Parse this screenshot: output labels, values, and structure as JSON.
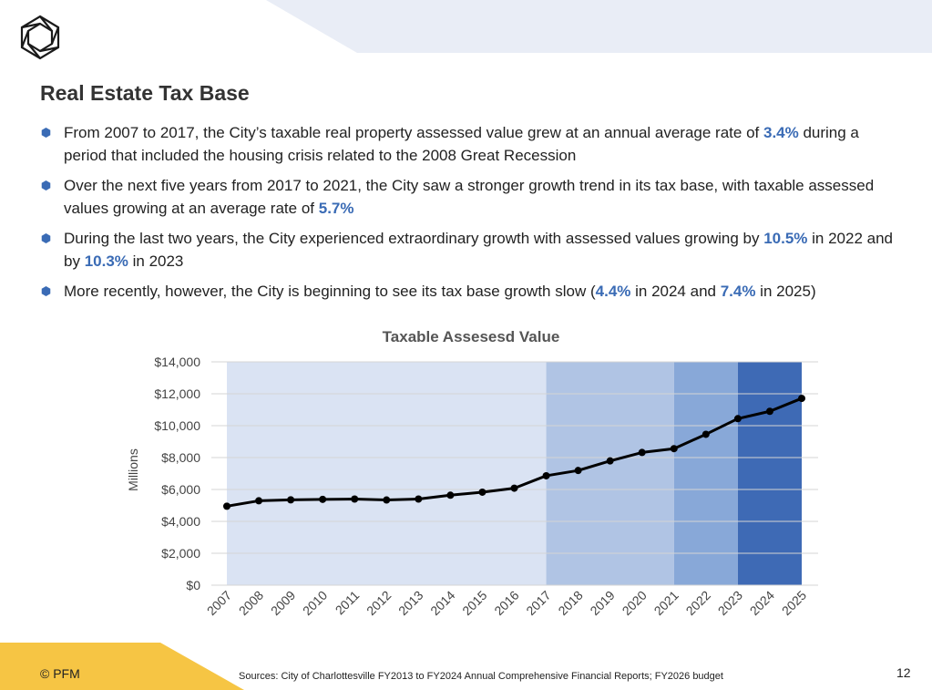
{
  "title": "Real Estate Tax Base",
  "bullets": [
    [
      {
        "text": "From 2007 to 2017, the City’s taxable real property assessed value grew at an annual average rate of "
      },
      {
        "text": "3.4%",
        "hl": true
      },
      {
        "text": " during a period that included the housing crisis related to the 2008 Great Recession"
      }
    ],
    [
      {
        "text": "Over the next five years from 2017 to 2021, the City saw a stronger growth trend in its tax base, with taxable assessed values growing at an average rate of "
      },
      {
        "text": "5.7%",
        "hl": true
      }
    ],
    [
      {
        "text": "During the last two years, the City experienced extraordinary growth with assessed values growing by "
      },
      {
        "text": "10.5%",
        "hl": true
      },
      {
        "text": " in 2022 and by "
      },
      {
        "text": "10.3%",
        "hl": true
      },
      {
        "text": " in 2023"
      }
    ],
    [
      {
        "text": "More recently, however, the City is beginning to see its tax base growth slow ("
      },
      {
        "text": "4.4%",
        "hl": true
      },
      {
        "text": " in 2024 and "
      },
      {
        "text": "7.4%",
        "hl": true
      },
      {
        "text": " in 2025)"
      }
    ]
  ],
  "colors": {
    "highlight": "#3a6bb5",
    "band1": "#dae3f3",
    "band2": "#b0c4e4",
    "band3": "#88a8d8",
    "band4": "#3e6ab5",
    "banner": "#e9edf6",
    "footer": "#f6c544"
  },
  "chart_data": {
    "type": "line",
    "title": "Taxable Assesesd Value",
    "xlabel": "",
    "ylabel": "Millions",
    "categories": [
      "2007",
      "2008",
      "2009",
      "2010",
      "2011",
      "2012",
      "2013",
      "2014",
      "2015",
      "2016",
      "2017",
      "2018",
      "2019",
      "2020",
      "2021",
      "2022",
      "2023",
      "2024",
      "2025"
    ],
    "values": [
      4950,
      5290,
      5350,
      5380,
      5400,
      5340,
      5400,
      5640,
      5830,
      6080,
      6860,
      7190,
      7790,
      8320,
      8560,
      9460,
      10440,
      10900,
      11710
    ],
    "ylim": [
      0,
      14000
    ],
    "yticks": [
      0,
      2000,
      4000,
      6000,
      8000,
      10000,
      12000,
      14000
    ],
    "ytick_labels": [
      "$0",
      "$2,000",
      "$4,000",
      "$6,000",
      "$8,000",
      "$10,000",
      "$12,000",
      "$14,000"
    ],
    "shaded_periods": [
      {
        "from": "2007",
        "to": "2017",
        "color": "#dae3f3"
      },
      {
        "from": "2017",
        "to": "2021",
        "color": "#b0c4e4"
      },
      {
        "from": "2021",
        "to": "2023",
        "color": "#88a8d8"
      },
      {
        "from": "2023",
        "to": "2025",
        "color": "#3e6ab5"
      }
    ]
  },
  "footer": {
    "copyright": "© PFM",
    "sources": "Sources: City of Charlottesville FY2013 to FY2024 Annual Comprehensive Financial Reports; FY2026 budget",
    "page_number": "12"
  }
}
